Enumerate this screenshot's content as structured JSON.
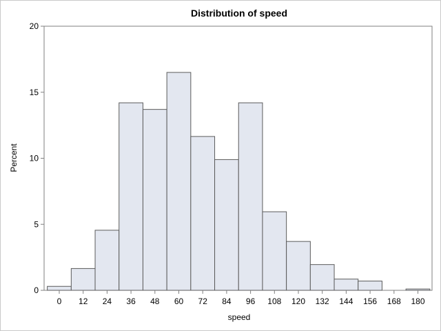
{
  "chart_data": {
    "type": "bar",
    "title": "Distribution of speed",
    "xlabel": "speed",
    "ylabel": "Percent",
    "bin_width": 12,
    "categories": [
      "0",
      "12",
      "24",
      "36",
      "48",
      "60",
      "72",
      "84",
      "96",
      "108",
      "120",
      "132",
      "144",
      "156",
      "168",
      "180"
    ],
    "values": [
      0.3,
      1.65,
      4.55,
      14.2,
      13.7,
      16.5,
      11.65,
      9.9,
      14.2,
      5.95,
      3.7,
      1.95,
      0.85,
      0.7,
      0,
      0.1
    ],
    "x_ticks": [
      "0",
      "12",
      "24",
      "36",
      "48",
      "60",
      "72",
      "84",
      "96",
      "108",
      "120",
      "132",
      "144",
      "156",
      "168",
      "180"
    ],
    "y_ticks": [
      "0",
      "5",
      "10",
      "15",
      "20"
    ],
    "ylim": [
      0,
      20
    ],
    "grid": false,
    "colors": {
      "bar_fill": "#e3e7f0",
      "bar_stroke": "#5a5a5a",
      "axis": "#7f7f7f"
    }
  }
}
